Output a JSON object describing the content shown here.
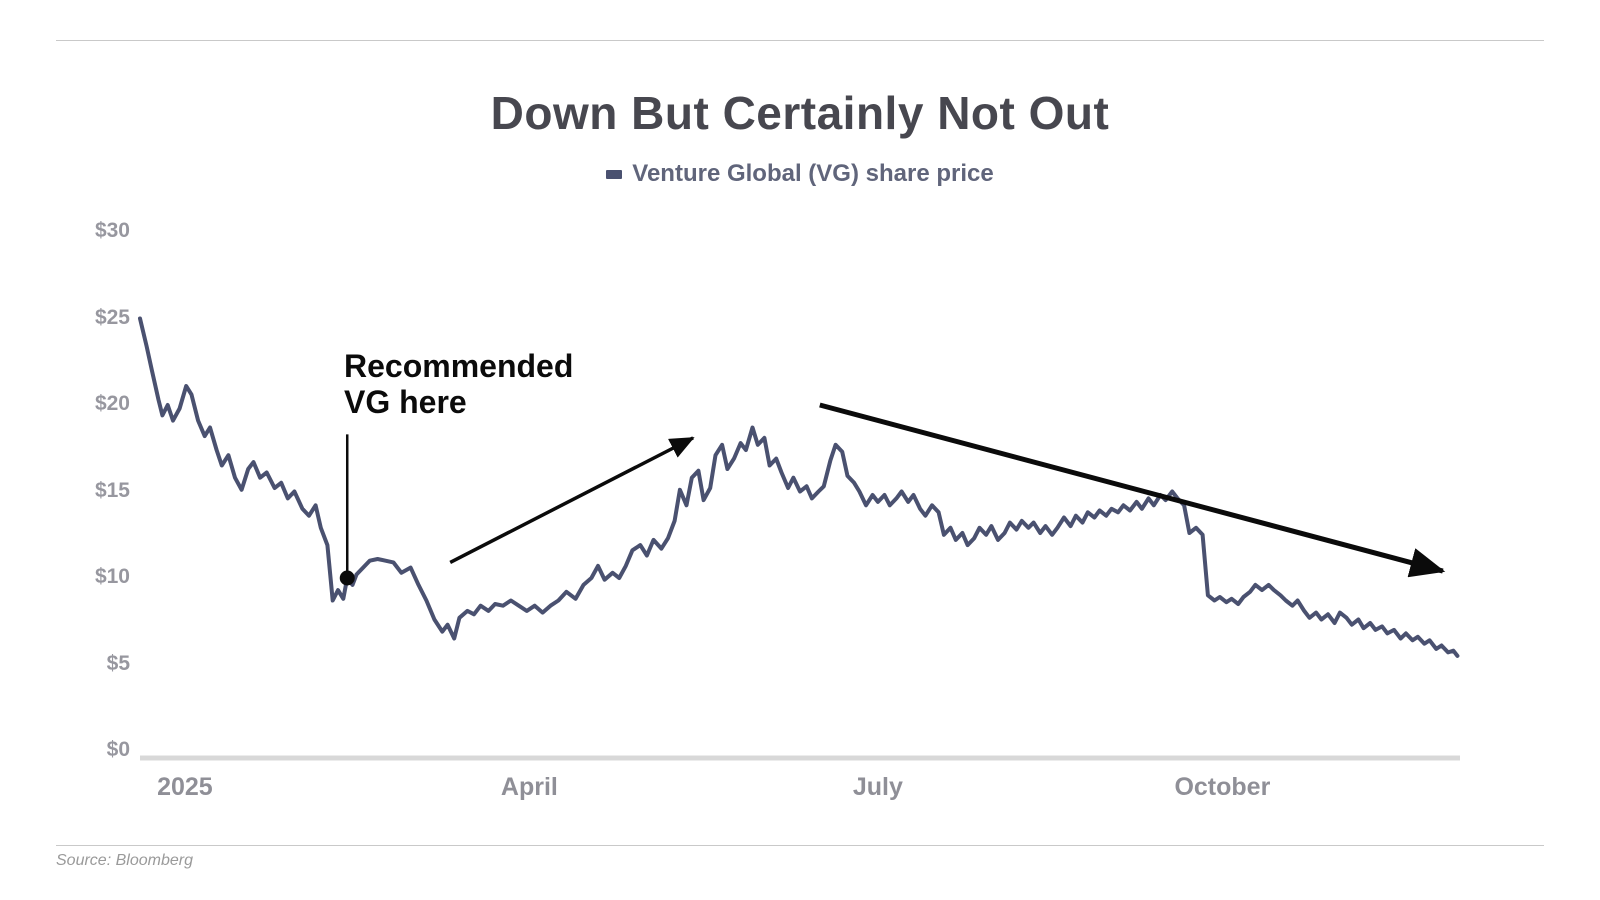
{
  "page": {
    "source": "Source: Bloomberg"
  },
  "chart_data": {
    "type": "line",
    "title": "Down But Certainly Not Out",
    "legend": {
      "label": "Venture Global (VG) share price"
    },
    "xlabel": "",
    "ylabel": "",
    "ylim": [
      0,
      30
    ],
    "grid": false,
    "legend_position": "top-center",
    "y_ticks": [
      {
        "label": "$30",
        "value": 30
      },
      {
        "label": "$25",
        "value": 25
      },
      {
        "label": "$20",
        "value": 20
      },
      {
        "label": "$15",
        "value": 15
      },
      {
        "label": "$10",
        "value": 10
      },
      {
        "label": "$5",
        "value": 5
      },
      {
        "label": "$0",
        "value": 0
      }
    ],
    "x_ticks": [
      {
        "label": "2025",
        "t": 0.034
      },
      {
        "label": "April",
        "t": 0.295
      },
      {
        "label": "July",
        "t": 0.559
      },
      {
        "label": "October",
        "t": 0.82
      }
    ],
    "series": [
      {
        "name": "Venture Global (VG) share price",
        "points": [
          [
            0.0,
            25.0
          ],
          [
            0.005,
            23.4
          ],
          [
            0.009,
            22.0
          ],
          [
            0.014,
            20.3
          ],
          [
            0.017,
            19.4
          ],
          [
            0.021,
            20.0
          ],
          [
            0.025,
            19.1
          ],
          [
            0.03,
            19.8
          ],
          [
            0.035,
            21.1
          ],
          [
            0.039,
            20.6
          ],
          [
            0.044,
            19.1
          ],
          [
            0.049,
            18.2
          ],
          [
            0.053,
            18.7
          ],
          [
            0.058,
            17.4
          ],
          [
            0.062,
            16.5
          ],
          [
            0.067,
            17.1
          ],
          [
            0.072,
            15.8
          ],
          [
            0.077,
            15.1
          ],
          [
            0.082,
            16.3
          ],
          [
            0.086,
            16.7
          ],
          [
            0.091,
            15.8
          ],
          [
            0.096,
            16.1
          ],
          [
            0.102,
            15.2
          ],
          [
            0.107,
            15.5
          ],
          [
            0.112,
            14.6
          ],
          [
            0.117,
            15.0
          ],
          [
            0.123,
            14.0
          ],
          [
            0.128,
            13.6
          ],
          [
            0.133,
            14.2
          ],
          [
            0.137,
            12.9
          ],
          [
            0.142,
            11.9
          ],
          [
            0.146,
            8.7
          ],
          [
            0.15,
            9.3
          ],
          [
            0.154,
            8.8
          ],
          [
            0.157,
            10.0
          ],
          [
            0.161,
            9.6
          ],
          [
            0.164,
            10.2
          ],
          [
            0.169,
            10.6
          ],
          [
            0.174,
            11.0
          ],
          [
            0.18,
            11.1
          ],
          [
            0.186,
            11.0
          ],
          [
            0.192,
            10.9
          ],
          [
            0.198,
            10.3
          ],
          [
            0.205,
            10.6
          ],
          [
            0.211,
            9.6
          ],
          [
            0.217,
            8.7
          ],
          [
            0.223,
            7.6
          ],
          [
            0.229,
            6.9
          ],
          [
            0.233,
            7.3
          ],
          [
            0.238,
            6.5
          ],
          [
            0.242,
            7.7
          ],
          [
            0.248,
            8.1
          ],
          [
            0.253,
            7.9
          ],
          [
            0.258,
            8.4
          ],
          [
            0.264,
            8.1
          ],
          [
            0.269,
            8.5
          ],
          [
            0.275,
            8.4
          ],
          [
            0.281,
            8.7
          ],
          [
            0.287,
            8.4
          ],
          [
            0.293,
            8.1
          ],
          [
            0.299,
            8.4
          ],
          [
            0.305,
            8.0
          ],
          [
            0.311,
            8.4
          ],
          [
            0.317,
            8.7
          ],
          [
            0.323,
            9.2
          ],
          [
            0.33,
            8.8
          ],
          [
            0.336,
            9.6
          ],
          [
            0.342,
            10.0
          ],
          [
            0.347,
            10.7
          ],
          [
            0.352,
            9.9
          ],
          [
            0.358,
            10.3
          ],
          [
            0.363,
            10.0
          ],
          [
            0.368,
            10.7
          ],
          [
            0.373,
            11.6
          ],
          [
            0.379,
            11.9
          ],
          [
            0.384,
            11.3
          ],
          [
            0.389,
            12.2
          ],
          [
            0.395,
            11.7
          ],
          [
            0.4,
            12.3
          ],
          [
            0.405,
            13.3
          ],
          [
            0.409,
            15.1
          ],
          [
            0.414,
            14.2
          ],
          [
            0.418,
            15.8
          ],
          [
            0.423,
            16.2
          ],
          [
            0.427,
            14.5
          ],
          [
            0.432,
            15.2
          ],
          [
            0.436,
            17.1
          ],
          [
            0.441,
            17.7
          ],
          [
            0.445,
            16.3
          ],
          [
            0.45,
            16.9
          ],
          [
            0.455,
            17.8
          ],
          [
            0.459,
            17.4
          ],
          [
            0.464,
            18.7
          ],
          [
            0.468,
            17.7
          ],
          [
            0.473,
            18.1
          ],
          [
            0.477,
            16.5
          ],
          [
            0.482,
            16.9
          ],
          [
            0.486,
            16.1
          ],
          [
            0.491,
            15.2
          ],
          [
            0.495,
            15.8
          ],
          [
            0.5,
            15.0
          ],
          [
            0.505,
            15.3
          ],
          [
            0.509,
            14.6
          ],
          [
            0.514,
            15.0
          ],
          [
            0.518,
            15.3
          ],
          [
            0.523,
            16.8
          ],
          [
            0.527,
            17.7
          ],
          [
            0.532,
            17.3
          ],
          [
            0.536,
            15.9
          ],
          [
            0.541,
            15.5
          ],
          [
            0.545,
            15.0
          ],
          [
            0.55,
            14.2
          ],
          [
            0.555,
            14.8
          ],
          [
            0.559,
            14.4
          ],
          [
            0.564,
            14.8
          ],
          [
            0.568,
            14.2
          ],
          [
            0.573,
            14.6
          ],
          [
            0.577,
            15.0
          ],
          [
            0.582,
            14.4
          ],
          [
            0.586,
            14.8
          ],
          [
            0.591,
            14.0
          ],
          [
            0.595,
            13.6
          ],
          [
            0.6,
            14.2
          ],
          [
            0.605,
            13.8
          ],
          [
            0.609,
            12.5
          ],
          [
            0.614,
            12.9
          ],
          [
            0.618,
            12.2
          ],
          [
            0.623,
            12.6
          ],
          [
            0.627,
            11.9
          ],
          [
            0.632,
            12.3
          ],
          [
            0.636,
            12.9
          ],
          [
            0.641,
            12.5
          ],
          [
            0.645,
            13.0
          ],
          [
            0.65,
            12.2
          ],
          [
            0.655,
            12.6
          ],
          [
            0.659,
            13.2
          ],
          [
            0.664,
            12.8
          ],
          [
            0.668,
            13.3
          ],
          [
            0.673,
            12.9
          ],
          [
            0.677,
            13.2
          ],
          [
            0.682,
            12.6
          ],
          [
            0.686,
            13.0
          ],
          [
            0.691,
            12.5
          ],
          [
            0.695,
            12.9
          ],
          [
            0.7,
            13.5
          ],
          [
            0.705,
            13.0
          ],
          [
            0.709,
            13.6
          ],
          [
            0.714,
            13.2
          ],
          [
            0.718,
            13.8
          ],
          [
            0.723,
            13.5
          ],
          [
            0.727,
            13.9
          ],
          [
            0.732,
            13.6
          ],
          [
            0.736,
            14.0
          ],
          [
            0.741,
            13.8
          ],
          [
            0.745,
            14.2
          ],
          [
            0.75,
            13.9
          ],
          [
            0.755,
            14.4
          ],
          [
            0.759,
            14.0
          ],
          [
            0.764,
            14.6
          ],
          [
            0.768,
            14.2
          ],
          [
            0.773,
            14.8
          ],
          [
            0.777,
            14.5
          ],
          [
            0.782,
            15.0
          ],
          [
            0.786,
            14.6
          ],
          [
            0.791,
            14.2
          ],
          [
            0.795,
            12.6
          ],
          [
            0.8,
            12.9
          ],
          [
            0.805,
            12.5
          ],
          [
            0.809,
            9.0
          ],
          [
            0.814,
            8.7
          ],
          [
            0.818,
            8.9
          ],
          [
            0.823,
            8.6
          ],
          [
            0.827,
            8.8
          ],
          [
            0.832,
            8.5
          ],
          [
            0.836,
            8.9
          ],
          [
            0.841,
            9.2
          ],
          [
            0.845,
            9.6
          ],
          [
            0.85,
            9.3
          ],
          [
            0.855,
            9.6
          ],
          [
            0.859,
            9.3
          ],
          [
            0.864,
            9.0
          ],
          [
            0.868,
            8.7
          ],
          [
            0.873,
            8.4
          ],
          [
            0.877,
            8.7
          ],
          [
            0.882,
            8.1
          ],
          [
            0.886,
            7.7
          ],
          [
            0.891,
            8.0
          ],
          [
            0.895,
            7.6
          ],
          [
            0.9,
            7.9
          ],
          [
            0.905,
            7.4
          ],
          [
            0.909,
            8.0
          ],
          [
            0.914,
            7.7
          ],
          [
            0.918,
            7.3
          ],
          [
            0.923,
            7.6
          ],
          [
            0.927,
            7.1
          ],
          [
            0.932,
            7.4
          ],
          [
            0.936,
            7.0
          ],
          [
            0.941,
            7.2
          ],
          [
            0.945,
            6.8
          ],
          [
            0.95,
            7.0
          ],
          [
            0.955,
            6.5
          ],
          [
            0.959,
            6.8
          ],
          [
            0.964,
            6.4
          ],
          [
            0.968,
            6.6
          ],
          [
            0.973,
            6.2
          ],
          [
            0.977,
            6.4
          ],
          [
            0.982,
            5.9
          ],
          [
            0.986,
            6.1
          ],
          [
            0.991,
            5.7
          ],
          [
            0.995,
            5.8
          ],
          [
            0.998,
            5.5
          ]
        ]
      }
    ],
    "annotations": {
      "recommended": {
        "line1": "Recommended",
        "line2": "VG here",
        "marker": {
          "t": 0.157,
          "price": 10.0
        },
        "pointer_top_price": 18.3
      },
      "arrows": [
        {
          "name": "uptrend-arrow",
          "from": [
            0.235,
            10.9
          ],
          "to": [
            0.419,
            18.1
          ],
          "width": 3.5
        },
        {
          "name": "downtrend-arrow",
          "from": [
            0.515,
            20.0
          ],
          "to": [
            0.987,
            10.4
          ],
          "width": 5
        }
      ]
    },
    "colors": {
      "line": "#4a5170",
      "annotation": "#0b0b0b",
      "axis": "#d8d8d8",
      "tick_text": "#97979f",
      "title_text": "#47474f",
      "legend_text": "#60657b"
    }
  }
}
